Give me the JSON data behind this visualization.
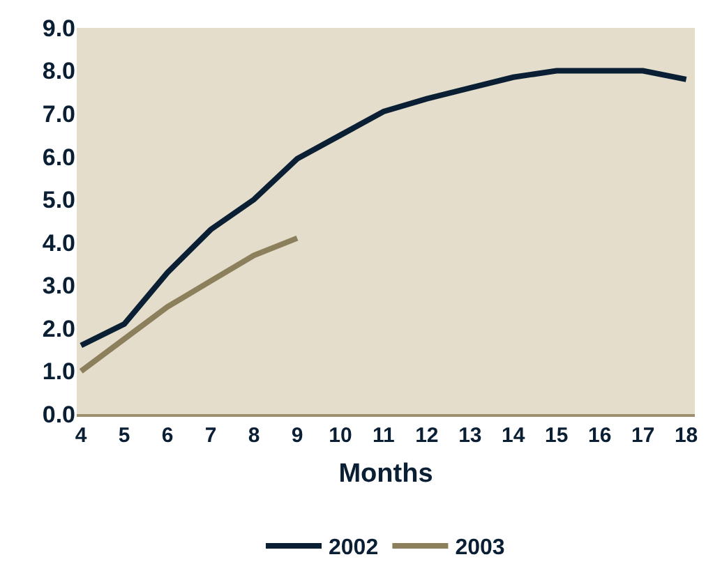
{
  "chart_data": {
    "type": "line",
    "xlabel": "Months",
    "x": [
      4,
      5,
      6,
      7,
      8,
      9,
      10,
      11,
      12,
      13,
      14,
      15,
      16,
      17,
      18
    ],
    "series": [
      {
        "name": "2002",
        "color": "#0a1f33",
        "values": [
          1.6,
          2.1,
          3.3,
          4.3,
          5.0,
          5.95,
          6.5,
          7.05,
          7.35,
          7.6,
          7.85,
          8.0,
          8.0,
          8.0,
          7.8
        ]
      },
      {
        "name": "2003",
        "color": "#8c7f5c",
        "values": [
          1.0,
          1.75,
          2.5,
          3.1,
          3.7,
          4.1,
          null,
          null,
          null,
          null,
          null,
          null,
          null,
          null,
          null
        ]
      }
    ],
    "xlim": [
      3.9,
      18.2
    ],
    "xticks": [
      4,
      5,
      6,
      7,
      8,
      9,
      10,
      11,
      12,
      13,
      14,
      15,
      16,
      17,
      18
    ],
    "ylim": [
      0,
      9
    ],
    "yticks": [
      {
        "value": 0,
        "label": "0.0"
      },
      {
        "value": 1,
        "label": "1.0"
      },
      {
        "value": 2,
        "label": "2.0"
      },
      {
        "value": 3,
        "label": "3.0"
      },
      {
        "value": 4,
        "label": "4.0"
      },
      {
        "value": 5,
        "label": "5.0"
      },
      {
        "value": 6,
        "label": "6.0"
      },
      {
        "value": 7,
        "label": "7.0"
      },
      {
        "value": 8,
        "label": "8.0"
      },
      {
        "value": 9,
        "label": "9.0"
      }
    ],
    "grid": false,
    "legend": "bottom",
    "marker": "none",
    "line_style": "solid"
  }
}
